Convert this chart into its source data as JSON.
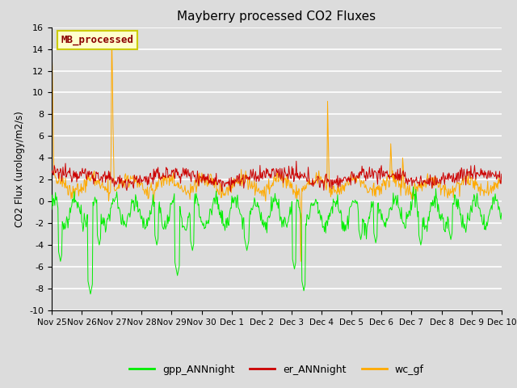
{
  "title": "Mayberry processed CO2 Fluxes",
  "ylabel": "CO2 Flux (urology/m2/s)",
  "ylim": [
    -10,
    16
  ],
  "yticks": [
    -10,
    -8,
    -6,
    -4,
    -2,
    0,
    2,
    4,
    6,
    8,
    10,
    12,
    14,
    16
  ],
  "bg_color": "#dcdcdc",
  "grid_color": "#ffffff",
  "colors": {
    "gpp": "#00ee00",
    "er": "#cc0000",
    "wc": "#ffaa00"
  },
  "legend_label": "MB_processed",
  "legend_text_color": "#8B0000",
  "legend_box_facecolor": "#ffffcc",
  "legend_box_edgecolor": "#cccc00",
  "x_tick_labels": [
    "Nov 25",
    "Nov 26",
    "Nov 27",
    "Nov 28",
    "Nov 29",
    "Nov 30",
    "Dec 1",
    "Dec 2",
    "Dec 3",
    "Dec 4",
    "Dec 5",
    "Dec 6",
    "Dec 7",
    "Dec 8",
    "Dec 9",
    "Dec 10"
  ],
  "legend_entries": [
    "gpp_ANNnight",
    "er_ANNnight",
    "wc_gf"
  ],
  "n_days": 15,
  "n_per_day": 48
}
